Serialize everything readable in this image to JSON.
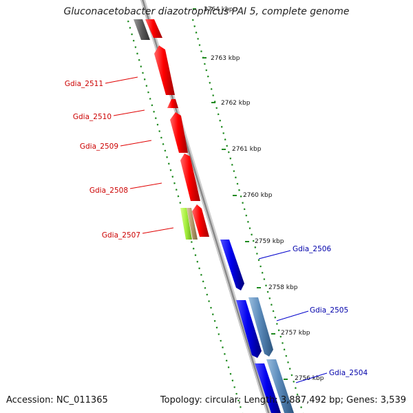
{
  "title": "Gluconacetobacter diazotrophicus PAI 5, complete genome",
  "footer": {
    "accession": "Accession: NC_011365",
    "summary": "Topology: circular; Length: 3,887,492 bp; Genes: 3,539"
  },
  "colors": {
    "background": "#ffffff",
    "backbone": "#8c8c8c",
    "axis_dash": "#1f8a1f",
    "reverse_gene": "#ff0000",
    "forward_gene": "#0000ff",
    "forward_feature": "#5f8fbf",
    "label_reverse": "#cc0000",
    "label_forward": "#0000aa",
    "highlight_gene": "#a6ef40",
    "highlight_feature": "#b59b6c",
    "grey_gene": "#5a5a5a"
  },
  "scale": {
    "unit": "kbp",
    "ticks": [
      {
        "label": "2764 kbp",
        "kbp": 2764
      },
      {
        "label": "2763 kbp",
        "kbp": 2763
      },
      {
        "label": "2762 kbp",
        "kbp": 2762
      },
      {
        "label": "2761 kbp",
        "kbp": 2761
      },
      {
        "label": "2760 kbp",
        "kbp": 2760
      },
      {
        "label": "2759 kbp",
        "kbp": 2759
      },
      {
        "label": "2758 kbp",
        "kbp": 2758
      },
      {
        "label": "2757 kbp",
        "kbp": 2757
      },
      {
        "label": "2756 kbp",
        "kbp": 2756
      }
    ]
  },
  "genes": [
    {
      "name": "Gdia_2511",
      "strand": "-",
      "start_kbp": 2762.05,
      "end_kbp": 2762.75
    },
    {
      "name": "Gdia_2510",
      "strand": "-",
      "start_kbp": 2761.7,
      "end_kbp": 2761.85
    },
    {
      "name": "Gdia_2509",
      "strand": "-",
      "start_kbp": 2761.0,
      "end_kbp": 2761.6
    },
    {
      "name": "Gdia_2508",
      "strand": "-",
      "start_kbp": 2760.15,
      "end_kbp": 2760.9
    },
    {
      "name": "Gdia_2507",
      "strand": "-",
      "start_kbp": 2759.4,
      "end_kbp": 2760.0
    },
    {
      "name": "Gdia_2506",
      "strand": "+",
      "start_kbp": 2758.1,
      "end_kbp": 2759.05
    },
    {
      "name": "Gdia_2505",
      "strand": "+",
      "start_kbp": 2756.75,
      "end_kbp": 2757.85
    },
    {
      "name": "Gdia_2504",
      "strand": "+",
      "start_kbp": 2755.5,
      "end_kbp": 2756.6
    }
  ]
}
